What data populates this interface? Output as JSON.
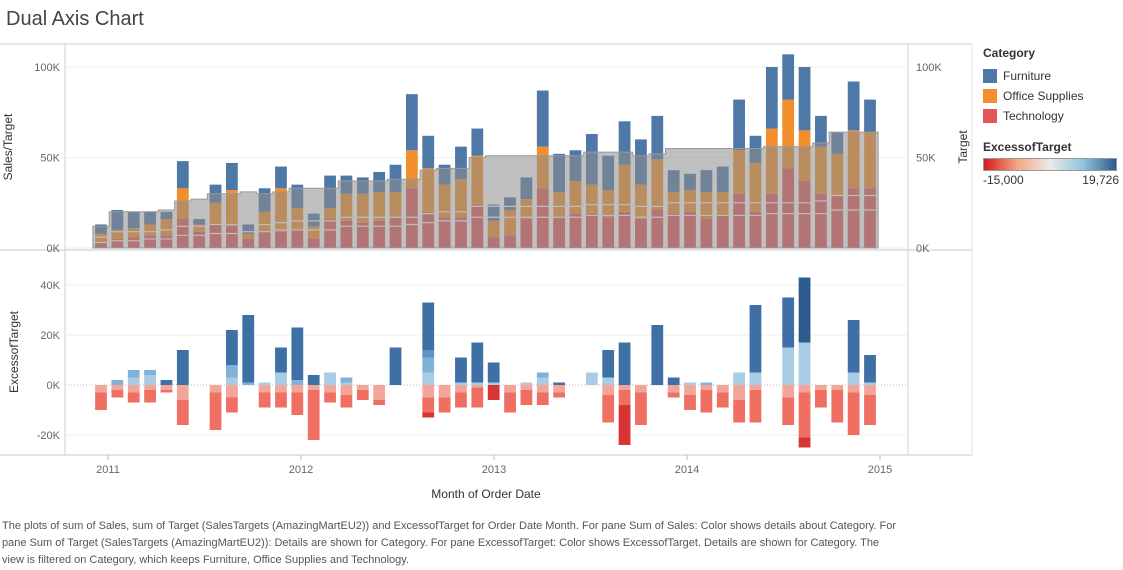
{
  "title": "Dual Axis Chart",
  "caption": "The plots of sum of Sales, sum of Target (SalesTargets (AmazingMartEU2)) and ExcessofTarget for Order Date Month.  For pane Sum of Sales:  Color shows details about Category.  For pane Sum of Target (SalesTargets (AmazingMartEU2)):  Details are shown for Category.  For pane ExcessofTarget:  Color shows ExcessofTarget.  Details are shown for Category. The view is filtered on Category, which keeps Furniture, Office Supplies and Technology.",
  "legend": {
    "title": "Category",
    "items": [
      {
        "label": "Furniture",
        "color": "#4e79a7"
      },
      {
        "label": "Office Supplies",
        "color": "#f28e2b"
      },
      {
        "label": "Technology",
        "color": "#e15759"
      }
    ],
    "colorscale_title": "ExcessofTarget",
    "colorscale_min": "-15,000",
    "colorscale_max": "19,726",
    "colorscale_colors": [
      "#d7191c",
      "#f4a582",
      "#eaeaea",
      "#92c5de",
      "#2b5b8c"
    ]
  },
  "chart_data": [
    {
      "type": "bar",
      "title": "",
      "xlabel": "Month of Order Date",
      "ylabel": "Sales/Target",
      "y2label": "Target",
      "ylim": [
        0,
        110000
      ],
      "y_ticks": [
        "0K",
        "50K",
        "100K"
      ],
      "x_ticks": [
        "2011",
        "2012",
        "2013",
        "2014",
        "2015"
      ],
      "x": [
        "2011-01",
        "2011-02",
        "2011-03",
        "2011-04",
        "2011-05",
        "2011-06",
        "2011-07",
        "2011-08",
        "2011-09",
        "2011-10",
        "2011-11",
        "2011-12",
        "2012-01",
        "2012-02",
        "2012-03",
        "2012-04",
        "2012-05",
        "2012-06",
        "2012-07",
        "2012-08",
        "2012-09",
        "2012-10",
        "2012-11",
        "2012-12",
        "2013-01",
        "2013-02",
        "2013-03",
        "2013-04",
        "2013-05",
        "2013-06",
        "2013-07",
        "2013-08",
        "2013-09",
        "2013-10",
        "2013-11",
        "2013-12",
        "2014-01",
        "2014-02",
        "2014-03",
        "2014-04",
        "2014-05",
        "2014-06",
        "2014-07",
        "2014-08",
        "2014-09",
        "2014-10",
        "2014-11",
        "2014-12"
      ],
      "stacked": true,
      "series": [
        {
          "name": "Technology",
          "color": "#e15759",
          "values": [
            3000,
            5000,
            6000,
            7000,
            7000,
            16000,
            9000,
            13000,
            12000,
            5000,
            9000,
            9000,
            10000,
            5000,
            16000,
            15000,
            14000,
            15000,
            17000,
            33000,
            20000,
            17000,
            17000,
            24000,
            6000,
            7000,
            16000,
            33000,
            17000,
            19000,
            19000,
            17000,
            20000,
            16000,
            21000,
            19000,
            20000,
            16000,
            18000,
            30000,
            20000,
            30000,
            44000,
            37000,
            30000,
            29000,
            33000,
            33000
          ]
        },
        {
          "name": "Office Supplies",
          "color": "#f28e2b",
          "values": [
            5000,
            5000,
            5000,
            6000,
            9000,
            17000,
            4000,
            12000,
            20000,
            3000,
            11000,
            24000,
            12000,
            7000,
            6000,
            15000,
            16000,
            16000,
            14000,
            21000,
            24000,
            18000,
            21000,
            27000,
            9000,
            14000,
            11000,
            23000,
            14000,
            18000,
            16000,
            15000,
            26000,
            19000,
            28000,
            12000,
            12000,
            15000,
            13000,
            24000,
            27000,
            36000,
            38000,
            28000,
            26000,
            23000,
            32000,
            31000
          ]
        },
        {
          "name": "Furniture",
          "color": "#4e79a7",
          "values": [
            5000,
            11000,
            9000,
            7000,
            4000,
            15000,
            3000,
            10000,
            15000,
            5000,
            13000,
            12000,
            13000,
            7000,
            18000,
            10000,
            9000,
            11000,
            15000,
            31000,
            18000,
            11000,
            18000,
            15000,
            9000,
            7000,
            12000,
            31000,
            21000,
            17000,
            28000,
            19000,
            24000,
            25000,
            24000,
            12000,
            9000,
            12000,
            14000,
            28000,
            15000,
            34000,
            25000,
            35000,
            17000,
            12000,
            27000,
            18000
          ]
        }
      ],
      "target": [
        12000,
        20000,
        20000,
        20000,
        21000,
        26000,
        27000,
        30000,
        30000,
        31000,
        30000,
        31000,
        33000,
        33000,
        33000,
        37000,
        37000,
        37000,
        38000,
        38000,
        43000,
        44000,
        44000,
        50000,
        51000,
        51000,
        51000,
        51000,
        51000,
        51000,
        53000,
        53000,
        53000,
        51000,
        52000,
        55000,
        55000,
        55000,
        55000,
        55000,
        55000,
        56000,
        56000,
        56000,
        58000,
        64000,
        64000,
        64000
      ],
      "target_category_lines": [
        {
          "name": "Technology",
          "values": [
            3000,
            4000,
            4000,
            5000,
            5000,
            7000,
            7000,
            8000,
            8000,
            9000,
            9000,
            10000,
            10000,
            10000,
            10000,
            12000,
            12000,
            12000,
            12000,
            13000,
            14000,
            15000,
            15000,
            17000,
            17000,
            17000,
            17000,
            17000,
            17000,
            17000,
            18000,
            18000,
            18000,
            17000,
            17000,
            18000,
            18000,
            18000,
            18000,
            18000,
            18000,
            19000,
            19000,
            19000,
            19000,
            21000,
            21000,
            21000
          ]
        },
        {
          "name": "Office Supplies",
          "values": [
            6000,
            9000,
            9000,
            9000,
            10000,
            12000,
            12000,
            13000,
            13000,
            14000,
            13000,
            14000,
            15000,
            15000,
            15000,
            17000,
            17000,
            17000,
            17000,
            17000,
            19000,
            20000,
            20000,
            23000,
            23000,
            23000,
            23000,
            23000,
            23000,
            23000,
            24000,
            24000,
            24000,
            23000,
            23000,
            25000,
            25000,
            25000,
            25000,
            25000,
            25000,
            25000,
            25000,
            25000,
            26000,
            29000,
            29000,
            29000
          ]
        }
      ]
    },
    {
      "type": "bar",
      "title": "",
      "xlabel": "Month of Order Date",
      "ylabel": "ExcessofTarget",
      "ylim": [
        -27000,
        53000
      ],
      "y_ticks": [
        "-20K",
        "0K",
        "20K",
        "40K"
      ],
      "x_ticks": [
        "2011",
        "2012",
        "2013",
        "2014",
        "2015"
      ],
      "positive_series": [
        [
          0,
          0,
          3000,
          4000,
          0,
          0,
          0,
          0,
          3000,
          0,
          1000,
          5000,
          0,
          0,
          5000,
          1000,
          0,
          0,
          0,
          0,
          5000,
          0,
          1000,
          1000,
          1000,
          0,
          1000,
          3000,
          0,
          0,
          5000,
          3000,
          0,
          0,
          0,
          0,
          1000,
          0,
          0,
          5000,
          5000,
          0,
          15000,
          17000,
          0,
          0,
          5000,
          1000
        ],
        [
          0,
          2000,
          3000,
          2000,
          0,
          0,
          0,
          0,
          5000,
          1000,
          0,
          0,
          2000,
          0,
          0,
          2000,
          0,
          0,
          0,
          0,
          6000,
          0,
          0,
          0,
          0,
          0,
          0,
          2000,
          0,
          0,
          0,
          0,
          0,
          0,
          0,
          0,
          0,
          1000,
          0,
          0,
          0,
          0,
          0,
          0,
          0,
          0,
          0,
          0
        ],
        [
          0,
          0,
          0,
          0,
          0,
          0,
          0,
          0,
          0,
          0,
          0,
          0,
          0,
          0,
          0,
          0,
          0,
          0,
          0,
          0,
          3000,
          0,
          0,
          0,
          0,
          0,
          0,
          0,
          0,
          0,
          0,
          0,
          0,
          0,
          0,
          0,
          0,
          0,
          0,
          0,
          0,
          0,
          0,
          0,
          0,
          0,
          0,
          0
        ],
        [
          0,
          0,
          0,
          0,
          2000,
          14000,
          0,
          0,
          14000,
          27000,
          0,
          10000,
          21000,
          4000,
          0,
          0,
          0,
          0,
          15000,
          0,
          19000,
          0,
          10000,
          16000,
          8000,
          0,
          0,
          0,
          1000,
          0,
          0,
          11000,
          17000,
          0,
          24000,
          3000,
          0,
          0,
          0,
          0,
          27000,
          0,
          20000,
          26000,
          0,
          0,
          21000,
          11000
        ]
      ],
      "negative_series": [
        [
          -3000,
          -2000,
          -3000,
          -2000,
          -2000,
          -6000,
          0,
          -3000,
          -5000,
          0,
          -3000,
          -3000,
          -3000,
          -2000,
          -3000,
          -4000,
          -2000,
          -6000,
          0,
          0,
          -5000,
          -5000,
          -3000,
          -1000,
          0,
          -3000,
          -2000,
          -3000,
          -3000,
          0,
          0,
          -4000,
          -2000,
          -3000,
          0,
          -3000,
          -4000,
          -2000,
          -3000,
          -6000,
          -2000,
          0,
          -5000,
          -3000,
          -2000,
          -2000,
          -3000,
          -4000
        ],
        [
          -7000,
          -3000,
          -4000,
          -5000,
          -1000,
          -10000,
          0,
          -15000,
          -6000,
          0,
          -6000,
          -6000,
          -9000,
          -20000,
          -4000,
          -5000,
          -4000,
          -2000,
          0,
          0,
          -6000,
          -6000,
          -6000,
          -8000,
          0,
          -8000,
          -6000,
          -5000,
          -2000,
          0,
          0,
          -11000,
          -6000,
          -13000,
          0,
          -2000,
          -6000,
          -9000,
          -6000,
          -9000,
          -13000,
          0,
          -11000,
          -18000,
          -7000,
          -13000,
          -17000,
          -12000
        ],
        [
          0,
          0,
          0,
          0,
          0,
          0,
          0,
          0,
          0,
          0,
          0,
          0,
          0,
          0,
          0,
          0,
          0,
          0,
          0,
          0,
          -2000,
          0,
          0,
          0,
          -6000,
          0,
          0,
          0,
          0,
          0,
          0,
          0,
          -16000,
          0,
          0,
          0,
          0,
          0,
          0,
          0,
          0,
          0,
          0,
          -4000,
          0,
          0,
          0,
          0
        ]
      ]
    }
  ]
}
